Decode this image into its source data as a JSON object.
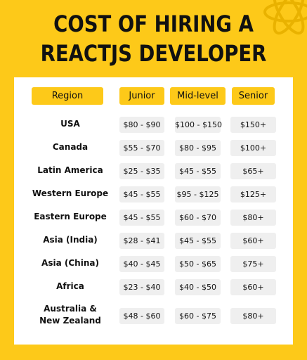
{
  "title": {
    "line1": "COST OF HIRING A",
    "line2": "REACTJS DEVELOPER"
  },
  "headers": {
    "region": "Region",
    "junior": "Junior",
    "mid": "Mid-level",
    "senior": "Senior"
  },
  "rows": [
    {
      "region": [
        "USA"
      ],
      "junior": "$80 - $90",
      "mid": "$100 - $150",
      "senior": "$150+"
    },
    {
      "region": [
        "Canada"
      ],
      "junior": "$55 - $70",
      "mid": "$80 - $95",
      "senior": "$100+"
    },
    {
      "region": [
        "Latin America"
      ],
      "junior": "$25 - $35",
      "mid": "$45 - $55",
      "senior": "$65+"
    },
    {
      "region": [
        "Western Europe"
      ],
      "junior": "$45 - $55",
      "mid": "$95 - $125",
      "senior": "$125+"
    },
    {
      "region": [
        "Eastern Europe"
      ],
      "junior": "$45 - $55",
      "mid": "$60 - $70",
      "senior": "$80+"
    },
    {
      "region": [
        "Asia (India)"
      ],
      "junior": "$28 - $41",
      "mid": "$45 - $55",
      "senior": "$60+"
    },
    {
      "region": [
        "Asia (China)"
      ],
      "junior": "$40 - $45",
      "mid": "$50 - $65",
      "senior": "$75+"
    },
    {
      "region": [
        "Africa"
      ],
      "junior": "$23 - $40",
      "mid": "$40 - $50",
      "senior": "$60+"
    },
    {
      "region": [
        "Australia &",
        "New Zealand"
      ],
      "junior": "$48 - $60",
      "mid": "$60 - $75",
      "senior": "$80+"
    }
  ],
  "colors": {
    "background": "#FDC919",
    "card": "#FFFFFF",
    "cell": "#EFEFEF",
    "text": "#111111"
  },
  "icons": {
    "corner": "react-atom-icon"
  }
}
